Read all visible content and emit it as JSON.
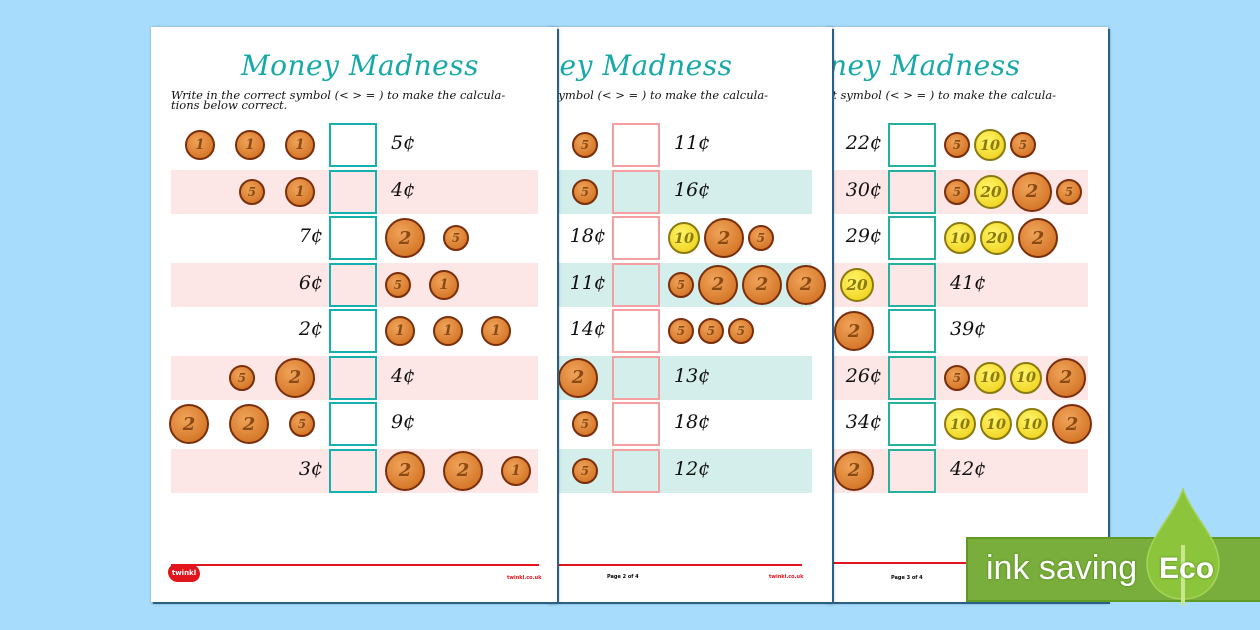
{
  "worksheet": {
    "title": "Money Madness",
    "instructions_line1": "Write in the correct symbol (< > = ) to make the calcula-",
    "instructions_line2": "tions below correct.",
    "currency_symbol": "¢",
    "site": "twinkl.co.uk",
    "logo_text": "twinkl"
  },
  "colors": {
    "background": "#a8dcfc",
    "title": "#17a9a9",
    "page1_stripe": "#fde6e6",
    "page2_stripe": "#d3eeeb",
    "page3_stripe": "#fde6e6",
    "page1_box": "#17b0b0",
    "page2_box": "#f4a0a0",
    "page3_box": "#25b0a0",
    "footer_line": "#e2141c",
    "eco_green": "#7aae3c"
  },
  "pages": [
    {
      "page_label": "",
      "rows": [
        {
          "left_coins": [
            1,
            1,
            1
          ],
          "left_amount": "",
          "right_amount": "5¢",
          "right_coins": []
        },
        {
          "left_coins": [
            5,
            1
          ],
          "left_amount": "",
          "right_amount": "4¢",
          "right_coins": []
        },
        {
          "left_coins": [],
          "left_amount": "7¢",
          "right_amount": "",
          "right_coins": [
            2,
            5
          ]
        },
        {
          "left_coins": [],
          "left_amount": "6¢",
          "right_amount": "",
          "right_coins": [
            5,
            1
          ]
        },
        {
          "left_coins": [],
          "left_amount": "2¢",
          "right_amount": "",
          "right_coins": [
            1,
            1,
            1
          ]
        },
        {
          "left_coins": [
            5,
            2
          ],
          "left_amount": "",
          "right_amount": "4¢",
          "right_coins": []
        },
        {
          "left_coins": [
            2,
            2,
            5
          ],
          "left_amount": "",
          "right_amount": "9¢",
          "right_coins": []
        },
        {
          "left_coins": [],
          "left_amount": "3¢",
          "right_amount": "",
          "right_coins": [
            2,
            2,
            1
          ]
        }
      ]
    },
    {
      "page_label": "Page 2 of 4",
      "rows": [
        {
          "left_coins": [
            5
          ],
          "left_amount": "",
          "right_amount": "11¢",
          "right_coins": []
        },
        {
          "left_coins": [
            5
          ],
          "left_amount": "",
          "right_amount": "16¢",
          "right_coins": []
        },
        {
          "left_coins": [],
          "left_amount": "18¢",
          "right_amount": "",
          "right_coins": [
            10,
            2,
            5
          ]
        },
        {
          "left_coins": [],
          "left_amount": "11¢",
          "right_amount": "",
          "right_coins": [
            5,
            2,
            2,
            2
          ]
        },
        {
          "left_coins": [],
          "left_amount": "14¢",
          "right_amount": "",
          "right_coins": [
            5,
            5,
            5
          ]
        },
        {
          "left_coins": [
            2
          ],
          "left_amount": "",
          "right_amount": "13¢",
          "right_coins": []
        },
        {
          "left_coins": [
            5
          ],
          "left_amount": "",
          "right_amount": "18¢",
          "right_coins": []
        },
        {
          "left_coins": [
            5
          ],
          "left_amount": "",
          "right_amount": "12¢",
          "right_coins": []
        }
      ]
    },
    {
      "page_label": "Page 3 of 4",
      "rows": [
        {
          "left_coins": [],
          "left_amount": "22¢",
          "right_amount": "",
          "right_coins": [
            5,
            10,
            5
          ]
        },
        {
          "left_coins": [],
          "left_amount": "30¢",
          "right_amount": "",
          "right_coins": [
            5,
            20,
            2,
            5
          ]
        },
        {
          "left_coins": [],
          "left_amount": "29¢",
          "right_amount": "",
          "right_coins": [
            10,
            20,
            2
          ]
        },
        {
          "left_coins": [
            20
          ],
          "left_amount": "",
          "right_amount": "41¢",
          "right_coins": []
        },
        {
          "left_coins": [
            2
          ],
          "left_amount": "",
          "right_amount": "39¢",
          "right_coins": []
        },
        {
          "left_coins": [],
          "left_amount": "26¢",
          "right_amount": "",
          "right_coins": [
            5,
            10,
            10,
            2
          ]
        },
        {
          "left_coins": [],
          "left_amount": "34¢",
          "right_amount": "",
          "right_coins": [
            10,
            10,
            10,
            2
          ]
        },
        {
          "left_coins": [
            2
          ],
          "left_amount": "",
          "right_amount": "42¢",
          "right_coins": []
        }
      ]
    }
  ],
  "badge": {
    "text": "ink saving",
    "label": "Eco",
    "icon": "leaf-icon"
  }
}
